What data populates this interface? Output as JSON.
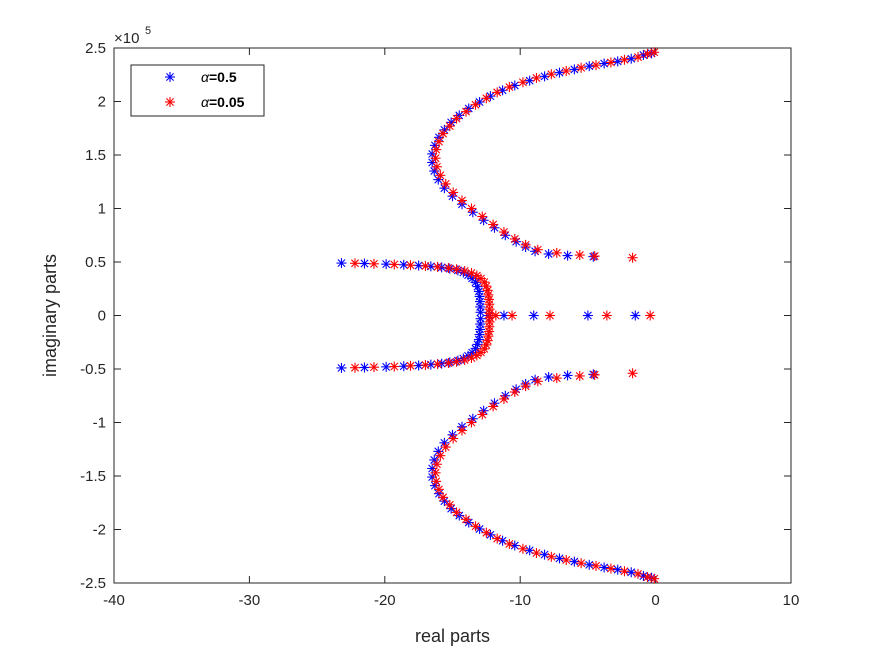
{
  "chart_data": {
    "type": "scatter",
    "xlabel": "real parts",
    "ylabel": "imaginary parts",
    "xlim": [
      -40,
      10
    ],
    "ylim": [
      -250000,
      250000
    ],
    "y_exponent_label": "×10",
    "y_exponent_power": "5",
    "grid": false,
    "legend_position": "top-left",
    "marker": "*",
    "x_ticks": [
      {
        "value": -40,
        "label": "-40"
      },
      {
        "value": -30,
        "label": "-30"
      },
      {
        "value": -20,
        "label": "-20"
      },
      {
        "value": -10,
        "label": "-10"
      },
      {
        "value": 0,
        "label": "0"
      },
      {
        "value": 10,
        "label": "10"
      }
    ],
    "y_ticks": [
      {
        "value": 250000,
        "label": "2.5"
      },
      {
        "value": 200000,
        "label": "2"
      },
      {
        "value": 150000,
        "label": "1.5"
      },
      {
        "value": 100000,
        "label": "1"
      },
      {
        "value": 50000,
        "label": "0.5"
      },
      {
        "value": 0,
        "label": "0"
      },
      {
        "value": -50000,
        "label": "-0.5"
      },
      {
        "value": -100000,
        "label": "-1"
      },
      {
        "value": -150000,
        "label": "-1.5"
      },
      {
        "value": -200000,
        "label": "-2"
      },
      {
        "value": -250000,
        "label": "-2.5"
      }
    ],
    "series": [
      {
        "name": "α=0.5",
        "legend_symbol": "α",
        "legend_value": "=0.5",
        "color": "#0000ff",
        "points": [
          [
            -23.2,
            49000
          ],
          [
            -21.5,
            48600
          ],
          [
            -19.9,
            48000
          ],
          [
            -18.6,
            47400
          ],
          [
            -17.5,
            46700
          ],
          [
            -16.6,
            45900
          ],
          [
            -15.8,
            45000
          ],
          [
            -15.2,
            43800
          ],
          [
            -14.6,
            42200
          ],
          [
            -14.2,
            40200
          ],
          [
            -13.85,
            37700
          ],
          [
            -13.55,
            34700
          ],
          [
            -13.3,
            31000
          ],
          [
            -13.15,
            27000
          ],
          [
            -13.05,
            22500
          ],
          [
            -13.0,
            17800
          ],
          [
            -12.97,
            13000
          ],
          [
            -12.95,
            8000
          ],
          [
            -12.93,
            3000
          ],
          [
            -12.3,
            0
          ],
          [
            -11.2,
            0
          ],
          [
            -9.0,
            0
          ],
          [
            -5.0,
            0
          ],
          [
            -1.5,
            0
          ],
          [
            -12.93,
            -3000
          ],
          [
            -12.95,
            -8000
          ],
          [
            -12.97,
            -13000
          ],
          [
            -13.0,
            -17800
          ],
          [
            -13.05,
            -22500
          ],
          [
            -13.15,
            -27000
          ],
          [
            -13.3,
            -31000
          ],
          [
            -13.55,
            -34700
          ],
          [
            -13.85,
            -37700
          ],
          [
            -14.2,
            -40200
          ],
          [
            -14.6,
            -42200
          ],
          [
            -15.2,
            -43800
          ],
          [
            -15.8,
            -45000
          ],
          [
            -16.6,
            -45900
          ],
          [
            -17.5,
            -46700
          ],
          [
            -18.6,
            -47400
          ],
          [
            -19.9,
            -48000
          ],
          [
            -21.5,
            -48600
          ],
          [
            -23.2,
            -49000
          ],
          [
            -0.3,
            245000
          ],
          [
            -0.9,
            243500
          ],
          [
            -1.8,
            240000
          ],
          [
            -2.8,
            237500
          ],
          [
            -3.8,
            235500
          ],
          [
            -4.9,
            233000
          ],
          [
            -6.0,
            230000
          ],
          [
            -7.1,
            227000
          ],
          [
            -8.2,
            223500
          ],
          [
            -9.3,
            219500
          ],
          [
            -10.4,
            215000
          ],
          [
            -11.3,
            210500
          ],
          [
            -12.2,
            205000
          ],
          [
            -13.0,
            199500
          ],
          [
            -13.8,
            193500
          ],
          [
            -14.5,
            187000
          ],
          [
            -15.1,
            180500
          ],
          [
            -15.6,
            173500
          ],
          [
            -16.0,
            166500
          ],
          [
            -16.3,
            159000
          ],
          [
            -16.5,
            151000
          ],
          [
            -16.5,
            143000
          ],
          [
            -16.35,
            135000
          ],
          [
            -16.05,
            127000
          ],
          [
            -15.6,
            119000
          ],
          [
            -15.0,
            111500
          ],
          [
            -14.3,
            104000
          ],
          [
            -13.5,
            96500
          ],
          [
            -12.7,
            89000
          ],
          [
            -11.9,
            82000
          ],
          [
            -11.1,
            75000
          ],
          [
            -10.3,
            69000
          ],
          [
            -9.6,
            64000
          ],
          [
            -8.9,
            60000
          ],
          [
            -7.9,
            57500
          ],
          [
            -6.5,
            56000
          ],
          [
            -4.6,
            55000
          ],
          [
            -0.3,
            -245000
          ],
          [
            -0.9,
            -243500
          ],
          [
            -1.8,
            -240000
          ],
          [
            -2.8,
            -237500
          ],
          [
            -3.8,
            -235500
          ],
          [
            -4.9,
            -233000
          ],
          [
            -6.0,
            -230000
          ],
          [
            -7.1,
            -227000
          ],
          [
            -8.2,
            -223500
          ],
          [
            -9.3,
            -219500
          ],
          [
            -10.4,
            -215000
          ],
          [
            -11.3,
            -210500
          ],
          [
            -12.2,
            -205000
          ],
          [
            -13.0,
            -199500
          ],
          [
            -13.8,
            -193500
          ],
          [
            -14.5,
            -187000
          ],
          [
            -15.1,
            -180500
          ],
          [
            -15.6,
            -173500
          ],
          [
            -16.0,
            -166500
          ],
          [
            -16.3,
            -159000
          ],
          [
            -16.5,
            -151000
          ],
          [
            -16.5,
            -143000
          ],
          [
            -16.35,
            -135000
          ],
          [
            -16.05,
            -127000
          ],
          [
            -15.6,
            -119000
          ],
          [
            -15.0,
            -111500
          ],
          [
            -14.3,
            -104000
          ],
          [
            -13.5,
            -96500
          ],
          [
            -12.7,
            -89000
          ],
          [
            -11.9,
            -82000
          ],
          [
            -11.1,
            -75000
          ],
          [
            -10.3,
            -69000
          ],
          [
            -9.6,
            -64000
          ],
          [
            -8.9,
            -60000
          ],
          [
            -7.9,
            -57500
          ],
          [
            -6.5,
            -56000
          ],
          [
            -4.6,
            -55000
          ]
        ]
      },
      {
        "name": "α=0.05",
        "legend_symbol": "α",
        "legend_value": "=0.05",
        "color": "#ff0000",
        "points": [
          [
            -22.2,
            48800
          ],
          [
            -20.8,
            48300
          ],
          [
            -19.3,
            47700
          ],
          [
            -18.1,
            47000
          ],
          [
            -17.0,
            46300
          ],
          [
            -16.1,
            45400
          ],
          [
            -15.3,
            44400
          ],
          [
            -14.7,
            43200
          ],
          [
            -14.1,
            41600
          ],
          [
            -13.6,
            39700
          ],
          [
            -13.2,
            37300
          ],
          [
            -12.9,
            34500
          ],
          [
            -12.65,
            31200
          ],
          [
            -12.5,
            27500
          ],
          [
            -12.4,
            23500
          ],
          [
            -12.35,
            19300
          ],
          [
            -12.3,
            15000
          ],
          [
            -12.28,
            10500
          ],
          [
            -12.26,
            6000
          ],
          [
            -12.25,
            2000
          ],
          [
            -11.8,
            0
          ],
          [
            -10.6,
            0
          ],
          [
            -7.8,
            0
          ],
          [
            -3.6,
            0
          ],
          [
            -0.4,
            0
          ],
          [
            -12.25,
            -2000
          ],
          [
            -12.26,
            -6000
          ],
          [
            -12.28,
            -10500
          ],
          [
            -12.3,
            -15000
          ],
          [
            -12.35,
            -19300
          ],
          [
            -12.4,
            -23500
          ],
          [
            -12.5,
            -27500
          ],
          [
            -12.65,
            -31200
          ],
          [
            -12.9,
            -34500
          ],
          [
            -13.2,
            -37300
          ],
          [
            -13.6,
            -39700
          ],
          [
            -14.1,
            -41600
          ],
          [
            -14.7,
            -43200
          ],
          [
            -15.3,
            -44400
          ],
          [
            -16.1,
            -45400
          ],
          [
            -17.0,
            -46300
          ],
          [
            -18.1,
            -47000
          ],
          [
            -19.3,
            -47700
          ],
          [
            -20.8,
            -48300
          ],
          [
            -22.2,
            -48800
          ],
          [
            -0.1,
            246000
          ],
          [
            -0.6,
            244500
          ],
          [
            -1.3,
            241500
          ],
          [
            -2.3,
            239000
          ],
          [
            -3.3,
            236500
          ],
          [
            -4.4,
            234000
          ],
          [
            -5.5,
            231500
          ],
          [
            -6.6,
            228500
          ],
          [
            -7.7,
            225500
          ],
          [
            -8.8,
            222000
          ],
          [
            -9.8,
            218000
          ],
          [
            -10.8,
            213500
          ],
          [
            -11.7,
            208500
          ],
          [
            -12.5,
            203000
          ],
          [
            -13.3,
            197000
          ],
          [
            -14.0,
            190500
          ],
          [
            -14.7,
            184000
          ],
          [
            -15.2,
            177000
          ],
          [
            -15.7,
            170000
          ],
          [
            -16.0,
            162500
          ],
          [
            -16.2,
            155000
          ],
          [
            -16.25,
            147000
          ],
          [
            -16.15,
            139000
          ],
          [
            -15.9,
            131000
          ],
          [
            -15.5,
            123000
          ],
          [
            -14.95,
            115000
          ],
          [
            -14.3,
            107500
          ],
          [
            -13.6,
            100000
          ],
          [
            -12.8,
            92500
          ],
          [
            -12.0,
            85000
          ],
          [
            -11.2,
            78000
          ],
          [
            -10.4,
            71500
          ],
          [
            -9.6,
            66000
          ],
          [
            -8.7,
            61500
          ],
          [
            -7.3,
            58500
          ],
          [
            -5.6,
            56500
          ],
          [
            -4.5,
            55500
          ],
          [
            -1.7,
            54000
          ],
          [
            -0.1,
            -246000
          ],
          [
            -0.6,
            -244500
          ],
          [
            -1.3,
            -241500
          ],
          [
            -2.3,
            -239000
          ],
          [
            -3.3,
            -236500
          ],
          [
            -4.4,
            -234000
          ],
          [
            -5.5,
            -231500
          ],
          [
            -6.6,
            -228500
          ],
          [
            -7.7,
            -225500
          ],
          [
            -8.8,
            -222000
          ],
          [
            -9.8,
            -218000
          ],
          [
            -10.8,
            -213500
          ],
          [
            -11.7,
            -208500
          ],
          [
            -12.5,
            -203000
          ],
          [
            -13.3,
            -197000
          ],
          [
            -14.0,
            -190500
          ],
          [
            -14.7,
            -184000
          ],
          [
            -15.2,
            -177000
          ],
          [
            -15.7,
            -170000
          ],
          [
            -16.0,
            -162500
          ],
          [
            -16.2,
            -155000
          ],
          [
            -16.25,
            -147000
          ],
          [
            -16.15,
            -139000
          ],
          [
            -15.9,
            -131000
          ],
          [
            -15.5,
            -123000
          ],
          [
            -14.95,
            -115000
          ],
          [
            -14.3,
            -107500
          ],
          [
            -13.6,
            -100000
          ],
          [
            -12.8,
            -92500
          ],
          [
            -12.0,
            -85000
          ],
          [
            -11.2,
            -78000
          ],
          [
            -10.4,
            -71500
          ],
          [
            -9.6,
            -66000
          ],
          [
            -8.7,
            -61500
          ],
          [
            -7.3,
            -58500
          ],
          [
            -5.6,
            -56500
          ],
          [
            -4.5,
            -55500
          ],
          [
            -1.7,
            -54000
          ]
        ]
      }
    ]
  }
}
